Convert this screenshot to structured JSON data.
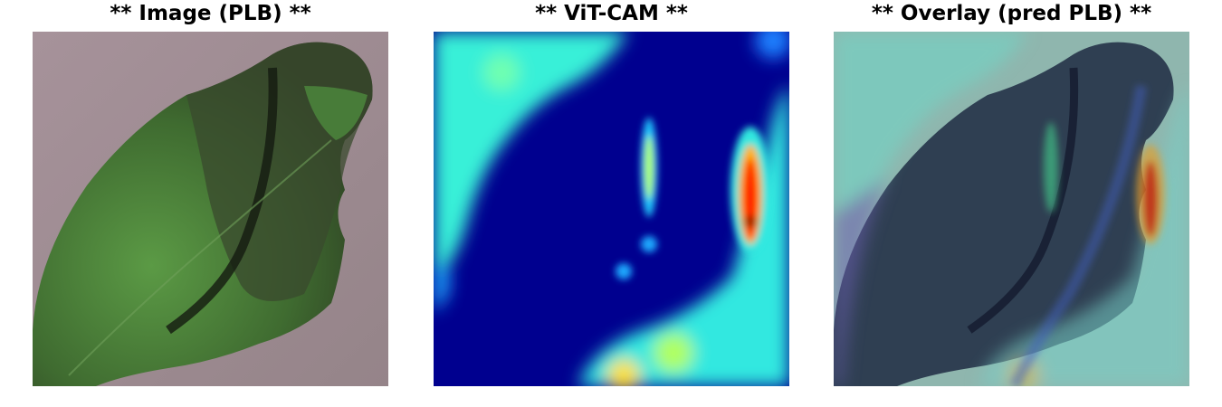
{
  "panels": [
    {
      "title": "** Image (PLB) **",
      "kind": "photo"
    },
    {
      "title": "** ViT-CAM **",
      "kind": "heatmap"
    },
    {
      "title": "** Overlay (pred PLB) **",
      "kind": "overlay"
    }
  ],
  "colors": {
    "background": "#ffffff",
    "jet_low": "#00008f",
    "jet_mid": "#00ffff",
    "jet_high": "#ff0000",
    "leaf_green": "#4f8a3c",
    "leaf_dark": "#2d3a22",
    "ground": "#a28e94"
  }
}
